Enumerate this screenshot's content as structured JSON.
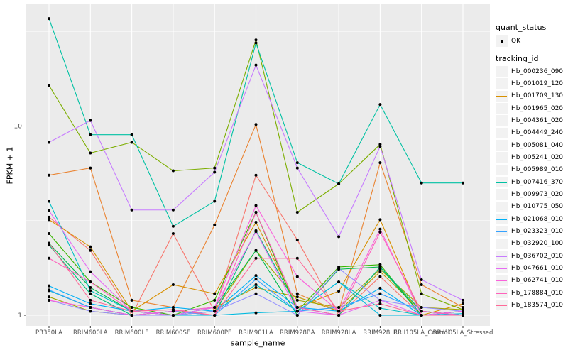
{
  "chart_data": {
    "type": "line",
    "title": "",
    "x_axis": {
      "label": "sample_name",
      "categories": [
        "PB350LA",
        "RRIM600LA",
        "RRIM600LE",
        "RRIM600SE",
        "RRIM600PE",
        "RRIM901LA",
        "RRIM928BA",
        "RRIM928LA",
        "RRIM928LE",
        "RRII105LA_Control",
        "RRII105LA_Stressed"
      ]
    },
    "y_axis": {
      "label": "FPKM + 1",
      "scale": "log10",
      "ticks": [
        "1",
        "10"
      ],
      "tick_values": [
        1,
        10
      ],
      "range": [
        1,
        45
      ],
      "grid": "on"
    },
    "legend": {
      "position": "right",
      "quant_status": {
        "title": "quant_status",
        "items": [
          {
            "label": "OK",
            "symbol": "point"
          }
        ]
      },
      "tracking_id": {
        "title": "tracking_id"
      }
    },
    "series": [
      {
        "name": "Hb_000236_090",
        "color": "#F8766D",
        "values": [
          3.3,
          2.2,
          1.0,
          2.7,
          1.05,
          5.5,
          2.5,
          1.0,
          1.6,
          1.0,
          1.05
        ]
      },
      {
        "name": "Hb_001019_120",
        "color": "#EA8331",
        "values": [
          5.5,
          6.0,
          1.2,
          1.1,
          3.0,
          10.2,
          1.3,
          1.05,
          6.4,
          1.45,
          1.1
        ]
      },
      {
        "name": "Hb_001709_130",
        "color": "#D89000",
        "values": [
          3.2,
          2.3,
          1.05,
          1.45,
          1.3,
          3.1,
          1.1,
          1.34,
          3.2,
          1.0,
          1.15
        ]
      },
      {
        "name": "Hb_001965_020",
        "color": "#C09B00",
        "values": [
          1.35,
          1.1,
          1.0,
          1.05,
          1.1,
          1.4,
          1.25,
          1.05,
          1.7,
          1.05,
          1.0
        ]
      },
      {
        "name": "Hb_004361_020",
        "color": "#A3A500",
        "values": [
          1.25,
          1.05,
          1.0,
          1.0,
          1.05,
          2.2,
          1.2,
          1.1,
          1.75,
          1.1,
          1.07
        ]
      },
      {
        "name": "Hb_004449_240",
        "color": "#7CAE00",
        "values": [
          16.4,
          7.2,
          8.2,
          5.8,
          6.0,
          28.5,
          3.5,
          4.95,
          8.0,
          1.3,
          1.07
        ]
      },
      {
        "name": "Hb_005081_040",
        "color": "#39B600",
        "values": [
          2.7,
          1.5,
          1.1,
          1.0,
          1.2,
          3.5,
          1.05,
          1.8,
          1.85,
          1.0,
          1.05
        ]
      },
      {
        "name": "Hb_005241_020",
        "color": "#00BB4E",
        "values": [
          2.4,
          1.4,
          1.05,
          1.0,
          1.1,
          2.2,
          1.0,
          1.75,
          1.8,
          1.0,
          1.0
        ]
      },
      {
        "name": "Hb_005989_010",
        "color": "#00BF7D",
        "values": [
          2.35,
          1.3,
          1.0,
          1.05,
          1.0,
          2.8,
          1.1,
          1.0,
          1.8,
          1.05,
          1.0
        ]
      },
      {
        "name": "Hb_007416_370",
        "color": "#00C1A3",
        "values": [
          37.0,
          9.0,
          9.0,
          2.95,
          4.0,
          27.5,
          6.4,
          4.95,
          13.0,
          5.0,
          5.0
        ]
      },
      {
        "name": "Hb_009973_020",
        "color": "#00BFC4",
        "values": [
          4.0,
          1.35,
          1.05,
          1.0,
          1.05,
          1.45,
          1.05,
          1.5,
          1.09,
          1.0,
          1.05
        ]
      },
      {
        "name": "Hb_010775_050",
        "color": "#00BAE0",
        "values": [
          1.35,
          1.1,
          1.0,
          1.0,
          1.0,
          1.03,
          1.05,
          1.5,
          1.0,
          1.0,
          1.02
        ]
      },
      {
        "name": "Hb_021068_010",
        "color": "#00B0F6",
        "values": [
          1.43,
          1.15,
          1.05,
          1.1,
          1.05,
          1.62,
          1.1,
          1.05,
          1.39,
          1.0,
          1.05
        ]
      },
      {
        "name": "Hb_023323_010",
        "color": "#35A2FF",
        "values": [
          1.36,
          1.1,
          1.0,
          1.05,
          1.0,
          1.55,
          1.05,
          1.1,
          1.3,
          1.05,
          1.0
        ]
      },
      {
        "name": "Hb_032920_100",
        "color": "#9590FF",
        "values": [
          1.2,
          1.05,
          1.0,
          1.0,
          1.05,
          1.3,
          1.0,
          1.77,
          1.2,
          1.1,
          1.05
        ]
      },
      {
        "name": "Hb_036702_010",
        "color": "#C77CFF",
        "values": [
          8.2,
          10.7,
          3.6,
          3.6,
          5.7,
          21.0,
          6.0,
          2.6,
          7.8,
          1.54,
          1.2
        ]
      },
      {
        "name": "Hb_047661_010",
        "color": "#E76BF3",
        "values": [
          3.57,
          1.7,
          1.05,
          1.0,
          1.1,
          2.77,
          1.05,
          1.0,
          1.2,
          1.0,
          1.0
        ]
      },
      {
        "name": "Hb_062741_010",
        "color": "#FA62DB",
        "values": [
          1.2,
          1.1,
          1.0,
          1.05,
          1.1,
          3.8,
          1.6,
          1.05,
          2.85,
          1.0,
          1.05
        ]
      },
      {
        "name": "Hb_178884_010",
        "color": "#FF62BC",
        "values": [
          2.0,
          1.5,
          1.05,
          1.07,
          1.0,
          3.5,
          1.1,
          1.0,
          2.75,
          1.05,
          1.0
        ]
      },
      {
        "name": "Hb_183574_010",
        "color": "#FF6A98",
        "values": [
          2.4,
          1.2,
          1.05,
          1.07,
          1.0,
          2.0,
          2.0,
          1.05,
          1.15,
          1.0,
          1.0
        ]
      }
    ],
    "point_color": "#000000"
  },
  "colors": {
    "panel_bg": "#EBEBEB",
    "grid": "#FFFFFF",
    "tick_text": "#4D4D4D",
    "tick_mark": "#333333",
    "legend_key_bg": "#F2F2F2",
    "page_bg": "#FFFFFF"
  }
}
